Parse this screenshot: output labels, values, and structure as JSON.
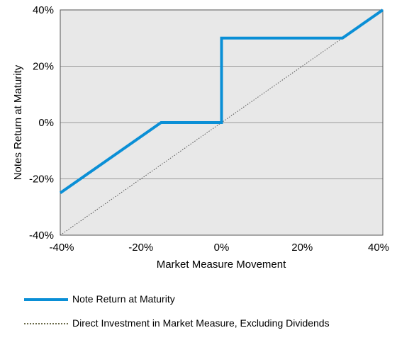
{
  "chart_data": {
    "type": "line",
    "xlabel": "Market Measure Movement",
    "ylabel": "Notes Return at Maturity",
    "xlim": [
      -40,
      40
    ],
    "ylim": [
      -40,
      40
    ],
    "x_ticks": [
      "-40%",
      "-20%",
      "0%",
      "20%",
      "40%"
    ],
    "y_ticks": [
      "40%",
      "20%",
      "0%",
      "-20%",
      "-40%"
    ],
    "grid": "horizontal",
    "series": [
      {
        "name": "Note Return at Maturity",
        "color": "#0a8fd6",
        "style": "solid",
        "x": [
          -40,
          -15,
          0,
          0,
          30,
          40
        ],
        "y": [
          -25,
          0,
          0,
          30,
          30,
          40
        ]
      },
      {
        "name": "Direct Investment in Market Measure, Excluding Dividends",
        "color": "#555555",
        "style": "dotted",
        "x": [
          -40,
          40
        ],
        "y": [
          -40,
          40
        ]
      }
    ],
    "legend_position": "bottom"
  }
}
